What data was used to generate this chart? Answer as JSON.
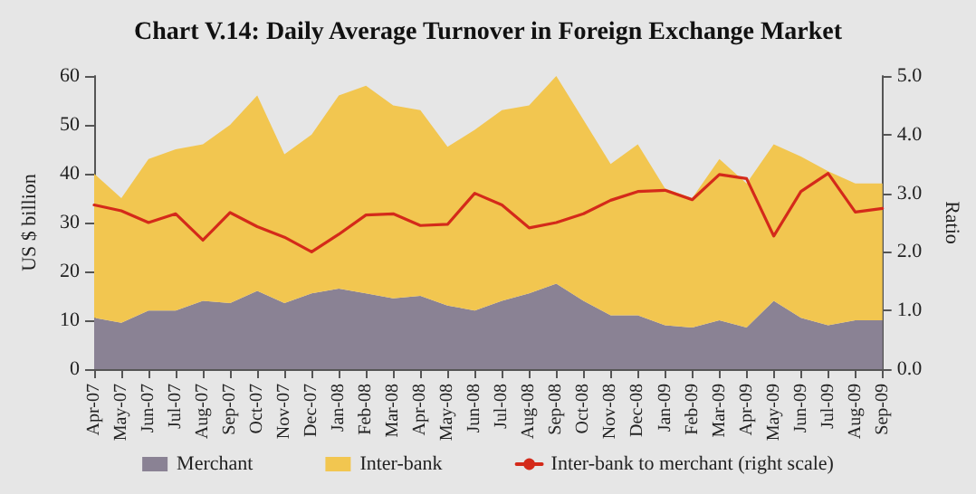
{
  "chart_data": {
    "type": "area",
    "title": "Chart V.14: Daily Average Turnover in Foreign Exchange Market",
    "ylabel": "US $ billion",
    "y2label": "Ratio",
    "categories": [
      "Apr-07",
      "May-07",
      "Jun-07",
      "Jul-07",
      "Aug-07",
      "Sep-07",
      "Oct-07",
      "Nov-07",
      "Dec-07",
      "Jan-08",
      "Feb-08",
      "Mar-08",
      "Apr-08",
      "May-08",
      "Jun-08",
      "Jul-08",
      "Aug-08",
      "Sep-08",
      "Oct-08",
      "Nov-08",
      "Dec-08",
      "Jan-09",
      "Feb-09",
      "Mar-09",
      "Apr-09",
      "May-09",
      "Jun-09",
      "Jul-09",
      "Aug-09",
      "Sep-09"
    ],
    "stacked": true,
    "marker": "none",
    "line_style": "solid",
    "grid": false,
    "legend": "bottom",
    "series": [
      {
        "name": "Merchant",
        "color": "#8a8294",
        "values": [
          10.5,
          9.5,
          12,
          12,
          14,
          13.5,
          16,
          13.5,
          15.5,
          16.5,
          15.5,
          14.5,
          15,
          13,
          12,
          14,
          15.5,
          17.5,
          14,
          11,
          11,
          9,
          8.5,
          10,
          8.5,
          14,
          10.5,
          9,
          10,
          10
        ]
      },
      {
        "name": "Inter-bank",
        "color": "#f2c650",
        "values": [
          29.5,
          25.5,
          31,
          33,
          32,
          36.5,
          40,
          30.5,
          32.5,
          39.5,
          42.5,
          39.5,
          38,
          32.5,
          37,
          39,
          38.5,
          42.5,
          37,
          31,
          35,
          28,
          26.5,
          33,
          29.5,
          32,
          33,
          31.5,
          28,
          28
        ]
      },
      {
        "name": "Inter-bank to merchant (right scale)",
        "type": "line",
        "axis": "y2",
        "color": "#d42a1a",
        "values": [
          2.8,
          2.7,
          2.5,
          2.65,
          2.2,
          2.67,
          2.43,
          2.25,
          2.0,
          2.3,
          2.63,
          2.65,
          2.45,
          2.47,
          3.0,
          2.8,
          2.41,
          2.5,
          2.65,
          2.88,
          3.03,
          3.05,
          2.89,
          3.32,
          3.25,
          2.27,
          3.03,
          3.34,
          2.68,
          2.74
        ]
      }
    ],
    "ylim": [
      0,
      60
    ],
    "yticks": [
      0,
      10,
      20,
      30,
      40,
      50,
      60
    ],
    "y2lim": [
      0,
      5
    ],
    "y2ticks": [
      {
        "value": 0,
        "label": "0.0"
      },
      {
        "value": 1,
        "label": "1.0"
      },
      {
        "value": 2,
        "label": "2.0"
      },
      {
        "value": 3,
        "label": "3.0"
      },
      {
        "value": 4,
        "label": "4.0"
      },
      {
        "value": 5,
        "label": "5.0"
      }
    ]
  }
}
